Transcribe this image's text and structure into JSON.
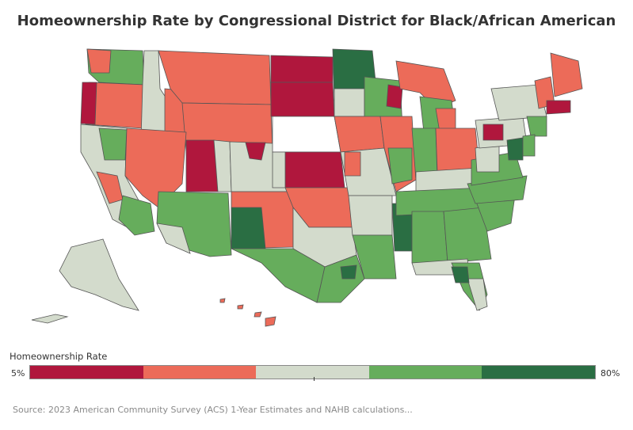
{
  "title": "Homeownership Rate by Congressional District for Black/African American",
  "legend": {
    "title": "Homeownership Rate",
    "min_label": "5%",
    "max_label": "80%",
    "colors": [
      "#b0173d",
      "#ec6b59",
      "#d3dbcc",
      "#66ad5c",
      "#2a6e43"
    ]
  },
  "source": "Source: 2023 American Community Survey (ACS) 1-Year Estimates and NAHB calculations..."
}
